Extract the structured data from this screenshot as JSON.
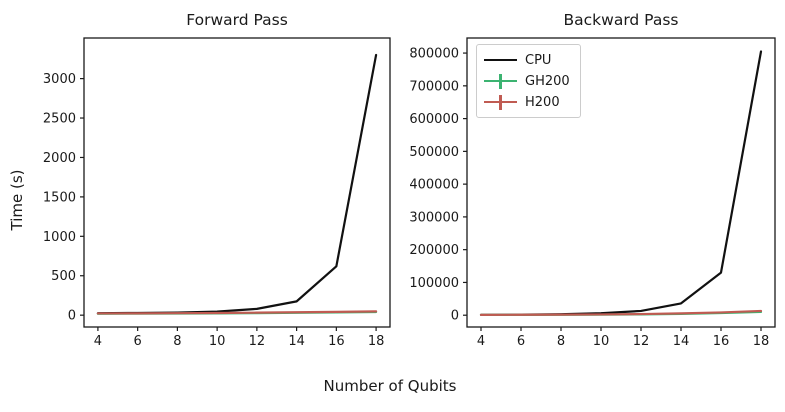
{
  "figure": {
    "xlabel": "Number of Qubits",
    "ylabel": "Time (s)",
    "background_color": "#ffffff",
    "text_color": "#1a1a1a",
    "spine_color": "#1a1a1a"
  },
  "legend": {
    "position": "upper-left-of-right-plot",
    "entries": [
      {
        "label": "CPU",
        "color": "#111111",
        "marker": "line"
      },
      {
        "label": "GH200",
        "color": "#3cb371",
        "marker": "errorbar"
      },
      {
        "label": "H200",
        "color": "#c05b52",
        "marker": "errorbar"
      }
    ]
  },
  "chart_data": [
    {
      "type": "line",
      "title": "Forward Pass",
      "xlabel": "Number of Qubits",
      "ylabel": "Time (s)",
      "grid": false,
      "x": [
        4,
        6,
        8,
        10,
        12,
        14,
        16,
        18
      ],
      "xticks": [
        4,
        6,
        8,
        10,
        12,
        14,
        16,
        18
      ],
      "yticks": [
        0,
        500,
        1000,
        1500,
        2000,
        2500,
        3000
      ],
      "xlim": [
        3.3,
        18.7
      ],
      "ylim": [
        -150,
        3515
      ],
      "series": [
        {
          "name": "CPU",
          "color": "#111111",
          "values": [
            25,
            28,
            33,
            45,
            80,
            175,
            620,
            3300
          ]
        },
        {
          "name": "GH200",
          "color": "#3cb371",
          "values": [
            18,
            19,
            21,
            23,
            26,
            30,
            35,
            40
          ]
        },
        {
          "name": "H200",
          "color": "#c05b52",
          "values": [
            22,
            23,
            25,
            28,
            32,
            37,
            42,
            48
          ]
        }
      ]
    },
    {
      "type": "line",
      "title": "Backward Pass",
      "xlabel": "Number of Qubits",
      "ylabel": "Time (s)",
      "grid": false,
      "x": [
        4,
        6,
        8,
        10,
        12,
        14,
        16,
        18
      ],
      "xticks": [
        4,
        6,
        8,
        10,
        12,
        14,
        16,
        18
      ],
      "yticks": [
        0,
        100000,
        200000,
        300000,
        400000,
        500000,
        600000,
        700000,
        800000
      ],
      "xlim": [
        3.3,
        18.7
      ],
      "ylim": [
        -36000,
        846000
      ],
      "series": [
        {
          "name": "CPU",
          "color": "#111111",
          "values": [
            1200,
            1800,
            3000,
            6000,
            13000,
            36000,
            130000,
            805000
          ]
        },
        {
          "name": "GH200",
          "color": "#3cb371",
          "values": [
            900,
            1000,
            1300,
            1800,
            2600,
            4000,
            6500,
            10000
          ]
        },
        {
          "name": "H200",
          "color": "#c05b52",
          "values": [
            1100,
            1300,
            1700,
            2400,
            3500,
            5500,
            8500,
            13000
          ]
        }
      ]
    }
  ]
}
